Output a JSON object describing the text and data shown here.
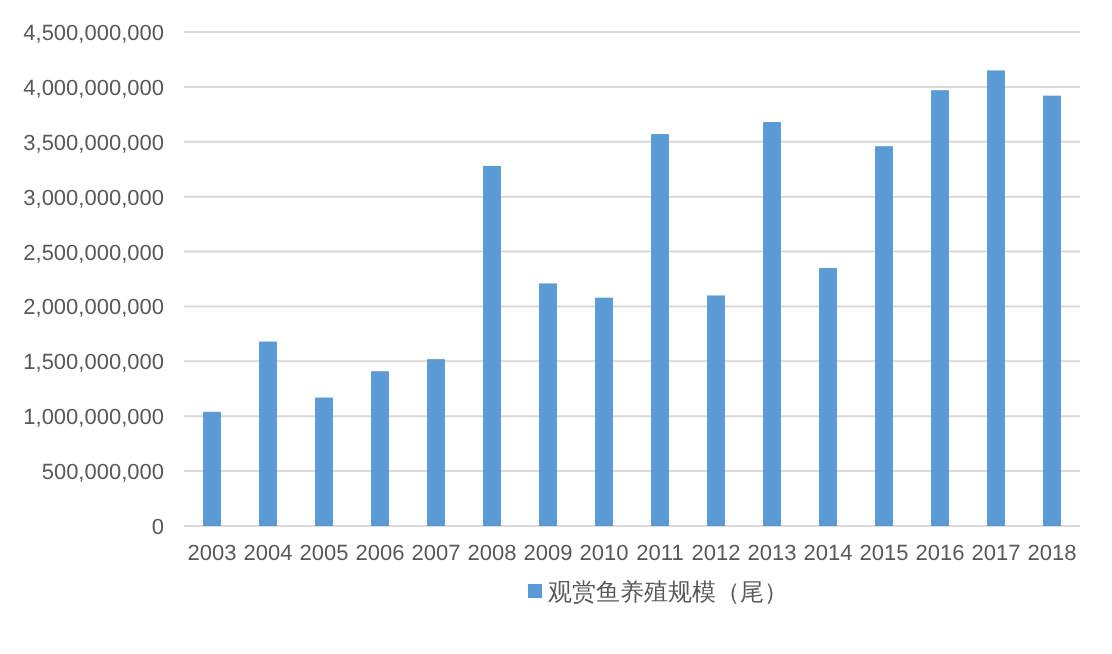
{
  "chart_data": {
    "type": "bar",
    "categories": [
      "2003",
      "2004",
      "2005",
      "2006",
      "2007",
      "2008",
      "2009",
      "2010",
      "2011",
      "2012",
      "2013",
      "2014",
      "2015",
      "2016",
      "2017",
      "2018"
    ],
    "series": [
      {
        "name": "观赏鱼养殖规模（尾）",
        "color": "#5b9bd5",
        "values": [
          1040000000,
          1680000000,
          1170000000,
          1410000000,
          1520000000,
          3280000000,
          2210000000,
          2080000000,
          3570000000,
          2100000000,
          3680000000,
          2350000000,
          3460000000,
          3970000000,
          4150000000,
          3920000000
        ]
      }
    ],
    "ylim": [
      0,
      4500000000
    ],
    "yticks": [
      {
        "value": 0,
        "label": "0"
      },
      {
        "value": 500000000,
        "label": "500,000,000"
      },
      {
        "value": 1000000000,
        "label": "1,000,000,000"
      },
      {
        "value": 1500000000,
        "label": "1,500,000,000"
      },
      {
        "value": 2000000000,
        "label": "2,000,000,000"
      },
      {
        "value": 2500000000,
        "label": "2,500,000,000"
      },
      {
        "value": 3000000000,
        "label": "3,000,000,000"
      },
      {
        "value": 3500000000,
        "label": "3,500,000,000"
      },
      {
        "value": 4000000000,
        "label": "4,000,000,000"
      },
      {
        "value": 4500000000,
        "label": "4,500,000,000"
      }
    ],
    "grid": "y",
    "legend": "bottom"
  }
}
